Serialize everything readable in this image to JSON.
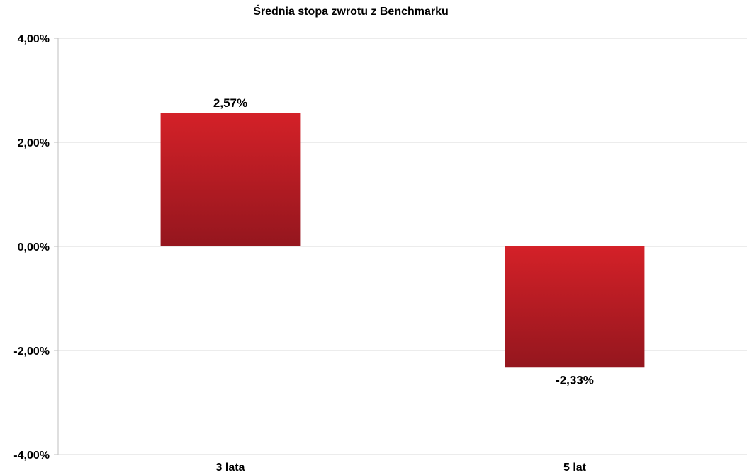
{
  "chart_data": {
    "type": "bar",
    "title": "Średnia stopa zwrotu z Benchmarku",
    "xlabel": "",
    "ylabel": "",
    "categories": [
      "3 lata",
      "5 lat"
    ],
    "values": [
      2.57,
      -2.33
    ],
    "data_labels": [
      "2,57%",
      "-2,33%"
    ],
    "ylim": [
      -4,
      4
    ],
    "y_ticks": [
      4,
      2,
      0,
      -2,
      -4
    ],
    "y_tick_labels": [
      "4,00%",
      "2,00%",
      "0,00%",
      "-2,00%",
      "-4,00%"
    ],
    "grid": true,
    "legend": "none",
    "colors": {
      "bar_top": "#d42128",
      "bar_bottom": "#94161e",
      "grid": "#d9d9d9",
      "axis": "#bfbfbf"
    }
  }
}
